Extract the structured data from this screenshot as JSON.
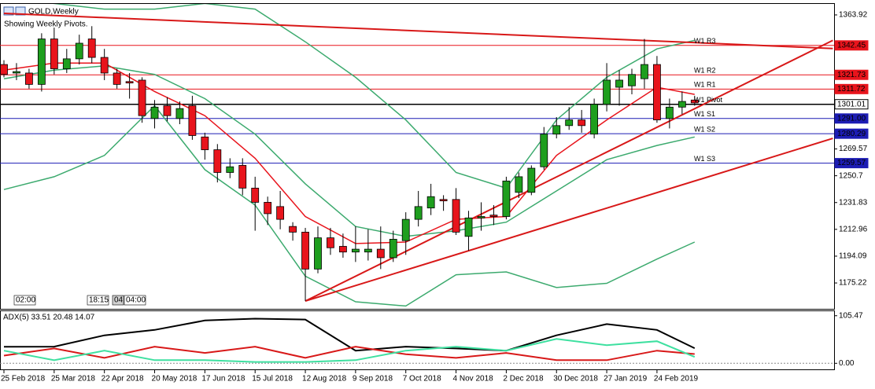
{
  "chart_data": [
    {
      "type": "candlestick",
      "title": "GOLD,Weekly",
      "subtitle": "Showing Weekly Pivots.",
      "time_labels": [
        "02:00",
        "18:15",
        "04",
        "04:00"
      ],
      "categories": [
        "25 Feb 2018",
        null,
        null,
        null,
        "25 Mar 2018",
        null,
        null,
        null,
        "22 Apr 2018",
        null,
        null,
        null,
        "20 May 2018",
        null,
        null,
        null,
        "17 Jun 2018",
        null,
        null,
        null,
        "15 Jul 2018",
        null,
        null,
        null,
        "12 Aug 2018",
        null,
        null,
        null,
        "9 Sep 2018",
        null,
        null,
        null,
        "7 Oct 2018",
        null,
        null,
        null,
        "4 Nov 2018",
        null,
        null,
        null,
        "2 Dec 2018",
        null,
        null,
        null,
        "30 Dec 2018",
        null,
        null,
        null,
        "27 Jan 2019",
        null,
        null,
        null,
        "24 Feb 2019",
        null,
        null,
        null
      ],
      "open": [
        1329,
        1323,
        1323,
        1315,
        1347,
        1326,
        1333,
        1347,
        1334,
        1323,
        1317,
        1318,
        1291,
        1300,
        1291,
        1300,
        1278,
        1269,
        1253,
        1258,
        1242,
        1232,
        1229,
        1215,
        1211,
        1185,
        1207,
        1201,
        1197,
        1197,
        1199,
        1193,
        1205,
        1220,
        1228,
        1234,
        1234,
        1208,
        1221,
        1223,
        1222,
        1239,
        1239,
        1257,
        1280,
        1286,
        1290,
        1280,
        1301,
        1313,
        1314,
        1319,
        1329,
        1291,
        1299,
        1304
      ],
      "high": [
        1332,
        1330,
        1326,
        1351,
        1355,
        1340,
        1350,
        1356,
        1340,
        1326,
        1323,
        1320,
        1304,
        1306,
        1303,
        1307,
        1281,
        1273,
        1263,
        1263,
        1250,
        1236,
        1240,
        1218,
        1214,
        1215,
        1214,
        1210,
        1215,
        1213,
        1215,
        1212,
        1225,
        1240,
        1245,
        1237,
        1242,
        1226,
        1232,
        1230,
        1250,
        1253,
        1258,
        1285,
        1292,
        1299,
        1297,
        1305,
        1330,
        1325,
        1326,
        1347,
        1335,
        1305,
        1310,
        1307
      ],
      "low": [
        1320,
        1318,
        1312,
        1310,
        1322,
        1323,
        1329,
        1330,
        1318,
        1312,
        1305,
        1288,
        1284,
        1289,
        1287,
        1276,
        1262,
        1246,
        1249,
        1237,
        1212,
        1216,
        1213,
        1205,
        1162.5,
        1182,
        1195,
        1193,
        1190,
        1191,
        1185,
        1190,
        1195,
        1215,
        1223,
        1226,
        1209,
        1198,
        1212,
        1216,
        1220,
        1235,
        1237,
        1255,
        1277,
        1283,
        1281,
        1277,
        1296,
        1300,
        1308,
        1312,
        1288,
        1284,
        1294,
        1300
      ],
      "close": [
        1322,
        1324,
        1315,
        1347,
        1326,
        1333,
        1344,
        1334,
        1323,
        1315,
        1316,
        1293,
        1299,
        1293,
        1298,
        1279,
        1269,
        1253,
        1257,
        1242,
        1232,
        1224,
        1220,
        1211,
        1185,
        1207,
        1200,
        1197,
        1199,
        1199,
        1193,
        1206,
        1220,
        1229,
        1236,
        1233,
        1211,
        1221,
        1222,
        1222,
        1247,
        1250,
        1256,
        1280,
        1286,
        1290,
        1286,
        1301,
        1318,
        1318,
        1322,
        1329,
        1290,
        1299,
        1303,
        1302
      ],
      "colors": {
        "up": "#1e9e1e",
        "down": "#e8141c"
      },
      "ylim": [
        1157,
        1371.65
      ],
      "yticks": [
        1363.92,
        1269.57,
        1250.7,
        1231.83,
        1212.96,
        1194.09,
        1175.22
      ],
      "levels": [
        {
          "label": "W1 R3",
          "value": 1342.45,
          "value_label": "1342.45",
          "color": "#e8141c"
        },
        {
          "label": "W1 R2",
          "value": 1321.73,
          "value_label": "1321.73",
          "color": "#e8141c"
        },
        {
          "label": "W1 R1",
          "value": 1311.72,
          "value_label": "1311.72",
          "color": "#e8141c"
        },
        {
          "label": "W1 Pivot",
          "value": 1301.01,
          "value_label": "1301.01",
          "color": "#000000"
        },
        {
          "label": "W1 S1",
          "value": 1291.0,
          "value_label": "1291.00",
          "color": "#1c1cb4"
        },
        {
          "label": "W1 S2",
          "value": 1280.29,
          "value_label": "1280.29",
          "color": "#1c1cb4"
        },
        {
          "label": "W1 S3",
          "value": 1259.57,
          "value_label": "1259.57",
          "color": "#1c1cb4"
        }
      ],
      "lines": [
        {
          "color": "#3caa6e",
          "x": [
            0,
            4,
            8,
            12,
            16,
            20,
            24,
            28,
            32,
            36,
            40,
            44,
            48,
            52,
            55
          ],
          "values": [
            1375,
            1372,
            1368,
            1368,
            1372,
            1368,
            1345,
            1320,
            1290,
            1253,
            1242,
            1290,
            1320,
            1340,
            1346
          ]
        },
        {
          "color": "#3caa6e",
          "x": [
            0,
            4,
            8,
            12,
            16,
            20,
            24,
            28,
            32,
            36,
            40,
            44,
            48,
            52,
            55
          ],
          "values": [
            1319,
            1325,
            1328,
            1322,
            1305,
            1280,
            1245,
            1215,
            1208,
            1212,
            1218,
            1240,
            1262,
            1272,
            1278
          ]
        },
        {
          "color": "#3caa6e",
          "x": [
            0,
            4,
            8,
            12,
            16,
            20,
            24,
            28,
            32,
            36,
            40,
            44,
            48,
            52,
            55
          ],
          "values": [
            1241,
            1250,
            1265,
            1300,
            1255,
            1230,
            1180,
            1162,
            1159,
            1181,
            1183,
            1172,
            1175,
            1192,
            1204
          ]
        },
        {
          "color": "#e8141c",
          "x": [
            0,
            4,
            8,
            12,
            16,
            20,
            24,
            28,
            32,
            36,
            40,
            44,
            48,
            52,
            55
          ],
          "values": [
            1325,
            1330,
            1330,
            1310,
            1293,
            1263,
            1222,
            1203,
            1204,
            1220,
            1222,
            1265,
            1290,
            1313,
            1308
          ]
        }
      ],
      "trendlines": [
        {
          "color": "#d81818",
          "x": [
            0,
            66
          ],
          "values": [
            1365,
            1340.3
          ]
        },
        {
          "color": "#d81818",
          "x": [
            24,
            66
          ],
          "values": [
            1162.5,
            1346
          ]
        },
        {
          "color": "#d81818",
          "x": [
            24,
            66
          ],
          "values": [
            1162.5,
            1277
          ]
        }
      ]
    },
    {
      "type": "line",
      "title": "ADX(5) 33.51 20.48 14.07",
      "ylim": [
        -13.4,
        115.5
      ],
      "yticks": [
        105.47,
        {
          "value": 0,
          "label": "0.00"
        }
      ],
      "series": [
        {
          "color": "#000000",
          "x": [
            0,
            4,
            8,
            12,
            16,
            20,
            24,
            28,
            32,
            36,
            40,
            44,
            48,
            52,
            55
          ],
          "values": [
            36.8,
            37,
            62,
            74,
            95,
            99,
            97,
            28,
            37,
            33,
            28,
            62,
            87,
            74,
            33.51
          ]
        },
        {
          "color": "#d81818",
          "x": [
            0,
            4,
            8,
            12,
            16,
            20,
            24,
            28,
            32,
            36,
            40,
            44,
            48,
            52,
            55
          ],
          "values": [
            17,
            33,
            12,
            37,
            23,
            37,
            12,
            37,
            20,
            12,
            23,
            7,
            7,
            28,
            20.48
          ]
        },
        {
          "color": "#3ee0a0",
          "x": [
            0,
            4,
            8,
            12,
            16,
            20,
            24,
            28,
            32,
            36,
            40,
            44,
            48,
            52,
            55
          ],
          "values": [
            28,
            7,
            28,
            7,
            7,
            3,
            3,
            7,
            28,
            37,
            28,
            54,
            40,
            49,
            14.07
          ]
        }
      ]
    }
  ]
}
